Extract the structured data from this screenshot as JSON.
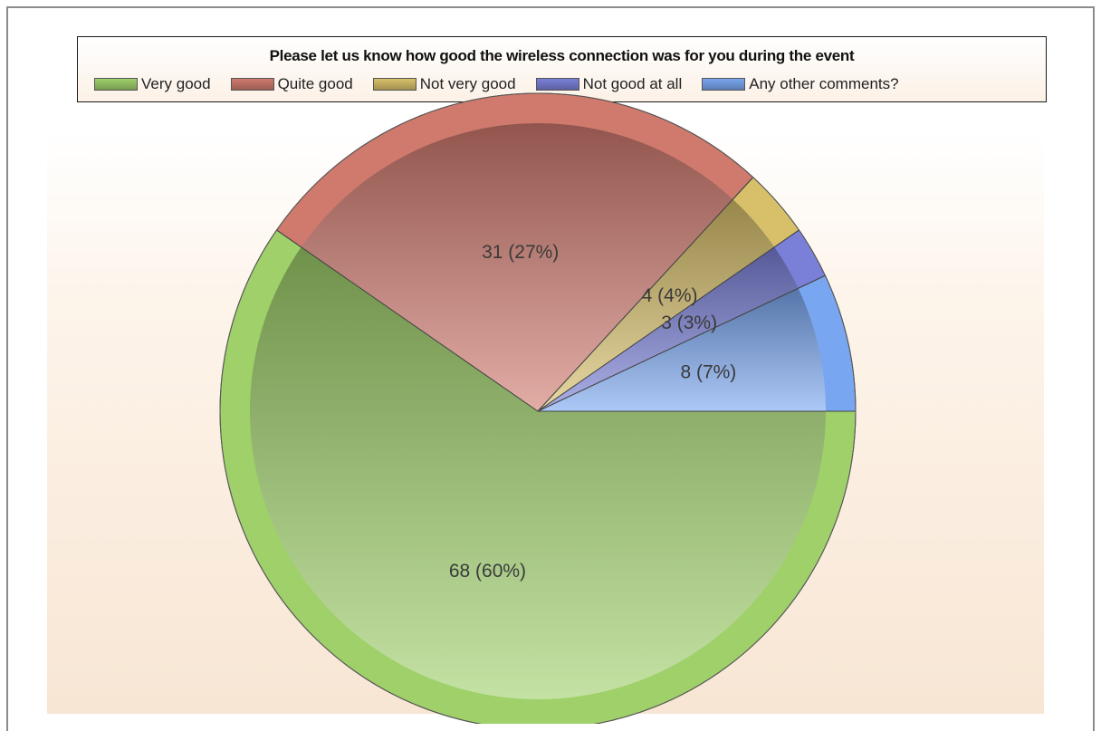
{
  "chart_data": {
    "type": "pie",
    "title": "Please let us know how good the wireless connection was for you during the event",
    "categories": [
      "Very good",
      "Quite good",
      "Not very good",
      "Not good at all",
      "Any other comments?"
    ],
    "values": [
      68,
      31,
      4,
      3,
      8
    ],
    "percentages": [
      60,
      27,
      4,
      3,
      7
    ],
    "data_labels": [
      "68 (60%)",
      "31 (27%)",
      "4 (4%)",
      "3 (3%)",
      "8 (7%)"
    ],
    "colors": [
      "#9fd06a",
      "#d07a6e",
      "#d8c06a",
      "#7a80d8",
      "#79a6f0"
    ],
    "legend_position": "top"
  }
}
